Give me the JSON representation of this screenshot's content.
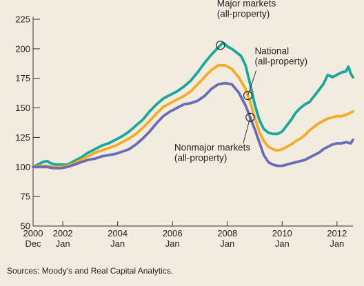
{
  "chart_data": {
    "type": "line",
    "title": "",
    "xlabel": "",
    "ylabel": "",
    "ylim": [
      50,
      225
    ],
    "xlim": [
      "2000-12",
      "2012-08"
    ],
    "grid": false,
    "y_ticks": [
      50,
      75,
      100,
      125,
      150,
      175,
      200,
      225
    ],
    "x_ticks": [
      {
        "date": "2000-12",
        "year": "2000",
        "month": "Dec"
      },
      {
        "date": "2002-01",
        "year": "2002",
        "month": "Jan"
      },
      {
        "date": "2004-01",
        "year": "2004",
        "month": "Jan"
      },
      {
        "date": "2006-01",
        "year": "2006",
        "month": "Jan"
      },
      {
        "date": "2008-01",
        "year": "2008",
        "month": "Jan"
      },
      {
        "date": "2010-01",
        "year": "2010",
        "month": "Jan"
      },
      {
        "date": "2012-01",
        "year": "2012",
        "month": "Jan"
      }
    ],
    "series": [
      {
        "name": "Major markets (all-property)",
        "color": "#1aa79b",
        "x": [
          "2000-12",
          "2001-02",
          "2001-04",
          "2001-06",
          "2001-08",
          "2001-10",
          "2001-12",
          "2002-03",
          "2002-06",
          "2002-09",
          "2002-12",
          "2003-03",
          "2003-06",
          "2003-09",
          "2003-12",
          "2004-03",
          "2004-06",
          "2004-09",
          "2004-12",
          "2005-03",
          "2005-06",
          "2005-09",
          "2005-12",
          "2006-03",
          "2006-06",
          "2006-09",
          "2006-12",
          "2007-03",
          "2007-06",
          "2007-09",
          "2007-10",
          "2007-11",
          "2007-12",
          "2008-01",
          "2008-03",
          "2008-05",
          "2008-07",
          "2008-09",
          "2008-11",
          "2009-01",
          "2009-03",
          "2009-05",
          "2009-07",
          "2009-09",
          "2009-11",
          "2010-01",
          "2010-03",
          "2010-05",
          "2010-07",
          "2010-09",
          "2010-11",
          "2011-01",
          "2011-03",
          "2011-05",
          "2011-07",
          "2011-09",
          "2011-11",
          "2012-01",
          "2012-03",
          "2012-05",
          "2012-06",
          "2012-07",
          "2012-08"
        ],
        "values": [
          100,
          102,
          104,
          105,
          103,
          102,
          102,
          102,
          105,
          108,
          112,
          115,
          118,
          120,
          123,
          126,
          130,
          135,
          140,
          147,
          153,
          158,
          161,
          164,
          168,
          173,
          180,
          188,
          195,
          201,
          203,
          205,
          204,
          202,
          200,
          197,
          194,
          186,
          170,
          153,
          140,
          132,
          129,
          128,
          128,
          130,
          135,
          140,
          146,
          150,
          153,
          155,
          160,
          165,
          170,
          178,
          176,
          178,
          180,
          181,
          185,
          179,
          176
        ]
      },
      {
        "name": "National (all-property)",
        "color": "#f2ac25",
        "x": [
          "2000-12",
          "2001-03",
          "2001-06",
          "2001-09",
          "2001-12",
          "2002-03",
          "2002-06",
          "2002-09",
          "2002-12",
          "2003-03",
          "2003-06",
          "2003-09",
          "2003-12",
          "2004-03",
          "2004-06",
          "2004-09",
          "2004-12",
          "2005-03",
          "2005-06",
          "2005-09",
          "2005-12",
          "2006-03",
          "2006-06",
          "2006-09",
          "2006-12",
          "2007-03",
          "2007-06",
          "2007-09",
          "2007-12",
          "2008-03",
          "2008-06",
          "2008-09",
          "2008-11",
          "2009-01",
          "2009-03",
          "2009-05",
          "2009-07",
          "2009-09",
          "2009-11",
          "2010-01",
          "2010-03",
          "2010-05",
          "2010-07",
          "2010-09",
          "2010-11",
          "2011-01",
          "2011-03",
          "2011-05",
          "2011-07",
          "2011-09",
          "2011-11",
          "2012-01",
          "2012-03",
          "2012-05",
          "2012-07",
          "2012-08"
        ],
        "values": [
          100,
          101,
          101,
          100,
          100,
          101,
          103,
          106,
          109,
          112,
          114,
          116,
          118,
          121,
          124,
          128,
          133,
          139,
          145,
          151,
          154,
          157,
          160,
          164,
          170,
          176,
          182,
          186,
          186,
          183,
          176,
          166,
          155,
          142,
          130,
          122,
          117,
          115,
          114,
          115,
          117,
          119,
          122,
          124,
          127,
          131,
          134,
          137,
          139,
          141,
          142,
          143,
          143,
          144,
          146,
          147
        ]
      },
      {
        "name": "Nonmajor markets (all-property)",
        "color": "#6a6cb5",
        "x": [
          "2000-12",
          "2001-03",
          "2001-06",
          "2001-09",
          "2001-12",
          "2002-03",
          "2002-06",
          "2002-09",
          "2002-12",
          "2003-03",
          "2003-06",
          "2003-09",
          "2003-12",
          "2004-03",
          "2004-06",
          "2004-09",
          "2004-12",
          "2005-03",
          "2005-06",
          "2005-09",
          "2005-12",
          "2006-03",
          "2006-06",
          "2006-09",
          "2006-12",
          "2007-03",
          "2007-06",
          "2007-09",
          "2007-12",
          "2008-03",
          "2008-06",
          "2008-09",
          "2008-11",
          "2009-01",
          "2009-03",
          "2009-05",
          "2009-07",
          "2009-09",
          "2009-11",
          "2010-01",
          "2010-03",
          "2010-05",
          "2010-07",
          "2010-09",
          "2010-11",
          "2011-01",
          "2011-03",
          "2011-05",
          "2011-07",
          "2011-09",
          "2011-11",
          "2012-01",
          "2012-03",
          "2012-05",
          "2012-07",
          "2012-08"
        ],
        "values": [
          100,
          100,
          100,
          99,
          99,
          100,
          102,
          104,
          106,
          107,
          109,
          110,
          111,
          113,
          115,
          119,
          124,
          130,
          137,
          143,
          147,
          150,
          153,
          154,
          156,
          160,
          166,
          170,
          171,
          170,
          163,
          152,
          142,
          132,
          121,
          110,
          104,
          102,
          101,
          101,
          102,
          103,
          104,
          105,
          106,
          108,
          110,
          112,
          115,
          117,
          119,
          120,
          120,
          121,
          120,
          123
        ]
      }
    ],
    "annotations": [
      {
        "lines": [
          "Major markets",
          "(all-property)"
        ],
        "series": "Major markets (all-property)",
        "at": "2007-10"
      },
      {
        "lines": [
          "National",
          "(all-property)"
        ],
        "series": "National (all-property)",
        "at": "2008-10"
      },
      {
        "lines": [
          "Nonmajor markets",
          "(all-property)"
        ],
        "series": "Nonmajor markets (all-property)",
        "at": "2008-11"
      }
    ]
  },
  "source_note": "Sources: Moody's and Real Capital Analytics."
}
